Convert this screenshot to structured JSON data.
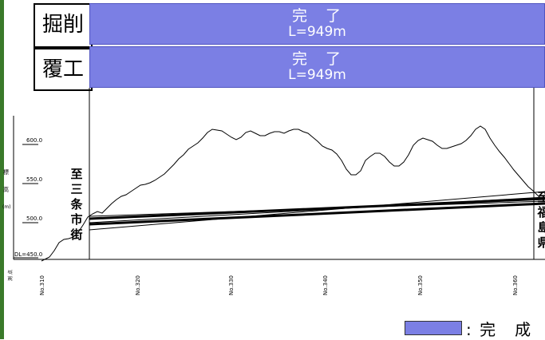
{
  "rows": [
    {
      "label": "掘削",
      "status": "完　了",
      "length": "L=949m"
    },
    {
      "label": "覆工",
      "status": "完　了",
      "length": "L=949m"
    }
  ],
  "axis": {
    "y_title": [
      "標",
      "高",
      "(m)"
    ],
    "y_ticks": [
      {
        "value": 600,
        "label": "600.0"
      },
      {
        "value": 550,
        "label": "550.0"
      },
      {
        "value": 500,
        "label": "500.0"
      },
      {
        "value": 450,
        "label": "DL=450.0"
      }
    ],
    "x_title": [
      "測",
      "点"
    ],
    "x_ticks": [
      "No.310",
      "No.320",
      "No.330",
      "No.340",
      "No.350",
      "No.360"
    ]
  },
  "ends": {
    "left": [
      "至",
      "三",
      "条",
      "市",
      "街"
    ],
    "right": [
      "至",
      "福",
      "島",
      "県"
    ]
  },
  "legend": {
    "label": ": 完　成",
    "color": "#7b7fe4"
  },
  "colors": {
    "bar": "#7b7fe4",
    "frame": "#3a7a2a"
  }
}
